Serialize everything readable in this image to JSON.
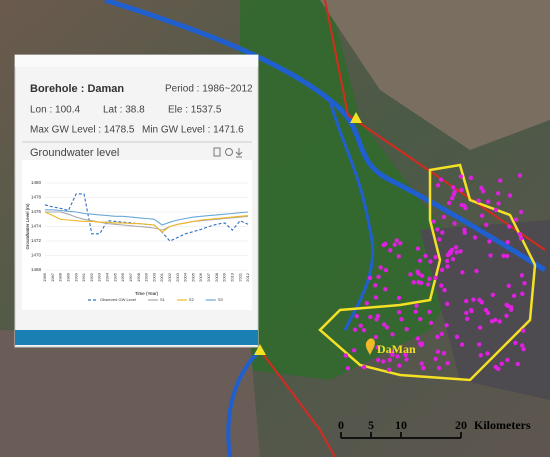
{
  "panel": {
    "title": "Borehole : Daman",
    "period": "Period : 1986~2012",
    "lon": "Lon : 100.4",
    "lat": "Lat : 38.8",
    "ele": "Ele : 1537.5",
    "max": "Max GW Level : 1478.5",
    "min": "Min GW Level : 1471.6",
    "section": "Groundwater level"
  },
  "chart": {
    "type": "line",
    "y_label": "Groundwater Level (m)",
    "x_label": "Time (Year)",
    "categories": [
      1986,
      1987,
      1988,
      1989,
      1990,
      1991,
      1992,
      1993,
      1994,
      1995,
      1996,
      1997,
      1998,
      1999,
      2000,
      2001,
      2002,
      2003,
      2004,
      2005,
      2006,
      2007,
      2008,
      2009,
      2010,
      2011,
      2012
    ],
    "ylim": [
      1468,
      1480
    ],
    "yticks": [
      1468,
      1470,
      1472,
      1474,
      1476,
      1478,
      1480
    ],
    "series": [
      {
        "name": "Observed GW Level",
        "color": "#2e6fc4",
        "dashed": true,
        "values": [
          1477,
          1476.7,
          1476.5,
          1476.2,
          1478.5,
          1478.5,
          1473,
          1473,
          1474.8,
          1474.7,
          1474.6,
          1474.5,
          1474.4,
          1474.3,
          1474.2,
          1473.2,
          1472,
          1472.5,
          1473,
          1473.3,
          1473.6,
          1474,
          1474.3,
          1474.5,
          1473.5,
          1474.8,
          1474.3
        ]
      },
      {
        "name": "S1",
        "color": "#a8a8a8",
        "values": [
          1476,
          1476,
          1476,
          1475.7,
          1475.3,
          1475,
          1474.8,
          1474.6,
          1474.4,
          1474.3,
          1474.2,
          1474.1,
          1474,
          1473.9,
          1473.8,
          1473.5,
          1474,
          1474.3,
          1474.5,
          1474.7,
          1474.8,
          1474.9,
          1475,
          1475.1,
          1475.2,
          1475.3,
          1475.4
        ]
      },
      {
        "name": "S2",
        "color": "#f0b92a",
        "values": [
          1476,
          1475.5,
          1475,
          1474.9,
          1474.8,
          1474.7,
          1474.7,
          1474.6,
          1474.6,
          1474.5,
          1474.5,
          1474.4,
          1474.4,
          1474.3,
          1474.2,
          1473.2,
          1474,
          1474.3,
          1474.5,
          1474.7,
          1474.9,
          1475,
          1475.1,
          1475.2,
          1475.3,
          1475.4,
          1475.5
        ]
      },
      {
        "name": "S3",
        "color": "#6aa8d8",
        "values": [
          1476.3,
          1476.3,
          1476.2,
          1476.1,
          1476,
          1475.8,
          1475.7,
          1475.6,
          1475.5,
          1475.4,
          1475.4,
          1475.3,
          1475.2,
          1475.1,
          1475,
          1474.2,
          1474.6,
          1474.9,
          1475.1,
          1475.3,
          1475.4,
          1475.5,
          1475.6,
          1475.7,
          1475.8,
          1475.9,
          1476
        ]
      }
    ]
  },
  "map": {
    "place": "DaMan",
    "scale": {
      "ticks": [
        "0",
        "5",
        "10",
        "20"
      ],
      "unit": "Kilometers"
    }
  }
}
